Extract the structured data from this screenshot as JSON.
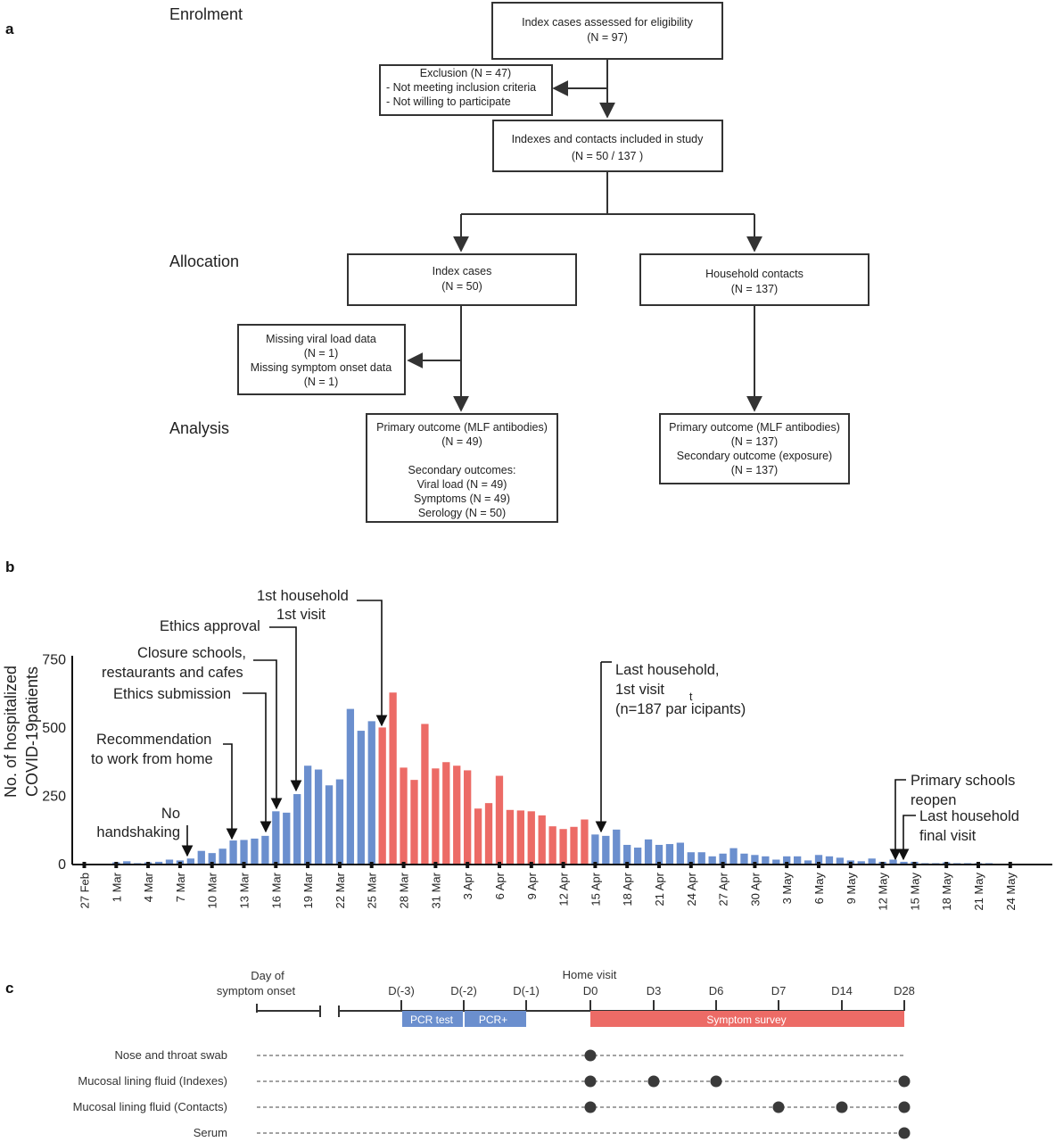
{
  "panels": {
    "a": "a",
    "b": "b",
    "c": "c"
  },
  "flow": {
    "stages": {
      "enrolment": "Enrolment",
      "allocation": "Allocation",
      "analysis": "Analysis"
    },
    "assessed": {
      "line1": "Index cases assessed for eligibility",
      "line2": "(N = 97)"
    },
    "exclusion": {
      "line1": "Exclusion (N = 47)",
      "line2": "- Not meeting inclusion criteria",
      "line3": "- Not willing to participate"
    },
    "included": {
      "line1": "Indexes and contacts included in study",
      "line2": "(N = 50 / 137 )"
    },
    "index_cases": {
      "line1": "Index cases",
      "line2": "(N = 50)"
    },
    "household": {
      "line1": "Household contacts",
      "line2": "(N = 137)"
    },
    "missing": {
      "line1": "Missing viral load data",
      "line2": "(N = 1)",
      "line3": "Missing symptom onset data",
      "line4": "(N = 1)"
    },
    "index_outcome": {
      "line1": "Primary outcome (MLF antibodies)",
      "line2": "(N = 49)",
      "line3": "Secondary outcomes:",
      "line4": "Viral load (N = 49)",
      "line5": "Symptoms (N = 49)",
      "line6": "Serology (N = 50)"
    },
    "household_outcome": {
      "line1": "Primary outcome (MLF antibodies)",
      "line2": "(N =  137)",
      "line3": "Secondary outcome (exposure)",
      "line4": "(N = 137)"
    }
  },
  "chart_data": {
    "type": "bar",
    "ylabel_line1": "No. of hospitalized",
    "ylabel_line2": "COVID-19patients",
    "ylim": [
      0,
      780
    ],
    "yticks": [
      0,
      250,
      500,
      750
    ],
    "xtick_labels": [
      "27 Feb",
      "1 Mar",
      "4 Mar",
      "7 Mar",
      "10 Mar",
      "13 Mar",
      "16 Mar",
      "19 Mar",
      "22 Mar",
      "25 Mar",
      "28 Mar",
      "31 Mar",
      "3 Apr",
      "6 Apr",
      "9 Apr",
      "12 Apr",
      "15 Apr",
      "18 Apr",
      "21 Apr",
      "24 Apr",
      "27 Apr",
      "30 Apr",
      "3 May",
      "6 May",
      "9 May",
      "12 May",
      "15 May",
      "18 May",
      "21 May",
      "24 May"
    ],
    "first_date": "27 Feb",
    "colors": {
      "before": "#6b8fce",
      "study": "#ec6b66"
    },
    "series": [
      {
        "values": [
          3,
          3,
          0,
          8,
          12,
          5,
          8,
          10,
          18,
          15,
          22,
          50,
          42,
          58,
          88,
          90,
          95,
          105,
          195,
          190,
          258,
          362,
          348,
          290,
          312,
          570,
          490,
          525
        ],
        "color": "#6b8fce"
      },
      {
        "values": [
          502,
          630,
          355,
          310,
          515,
          352,
          375,
          362,
          345,
          205,
          225,
          325,
          200,
          198,
          195,
          180,
          140,
          130,
          138,
          165
        ],
        "color": "#ec6b66"
      },
      {
        "values": [
          110,
          105,
          128,
          72,
          62,
          92,
          72,
          75,
          80,
          45,
          45,
          30,
          40,
          60,
          40,
          35,
          30,
          18,
          30,
          30,
          15,
          35,
          30,
          25,
          15,
          12,
          22,
          10,
          18,
          10,
          10,
          5,
          5,
          8,
          5,
          5,
          5,
          5,
          3,
          3,
          2,
          2
        ],
        "color": "#6b8fce"
      }
    ],
    "annotations": {
      "no_handshaking": {
        "line1": "No",
        "line2": "handshaking"
      },
      "work_from_home": {
        "line1": "Recommendation",
        "line2": "to work from home"
      },
      "ethics_submission": {
        "line1": "Ethics submission"
      },
      "closure": {
        "line1": "Closure schools,",
        "line2": "restaurants and cafes"
      },
      "ethics_approval": {
        "line1": "Ethics approval"
      },
      "first_household": {
        "line1": "1st household",
        "line2": "1st visit"
      },
      "last_household": {
        "line1": "Last household,",
        "line2": "1st visit",
        "line3": "(n=187 par icipants)",
        "stray": "t"
      },
      "schools_reopen": {
        "line1": "Primary schools",
        "line2": "reopen"
      },
      "last_final": {
        "line1": "Last household",
        "line2": "final visit"
      }
    }
  },
  "timeline": {
    "onset": {
      "line1": "Day of",
      "line2": "symptom onset"
    },
    "home_visit": "Home visit",
    "days": [
      "D(-3)",
      "D(-2)",
      "D(-1)",
      "D0",
      "D3",
      "D6",
      "D7",
      "D14",
      "D28"
    ],
    "pcr_test": "PCR test",
    "pcr_pos": "PCR+",
    "symptom_survey": "Symptom survey",
    "rows": [
      {
        "label": "Nose and throat swab",
        "dots": [
          "D0"
        ]
      },
      {
        "label": "Mucosal lining fluid (Indexes)",
        "dots": [
          "D0",
          "D3",
          "D6",
          "D28"
        ]
      },
      {
        "label": "Mucosal lining fluid (Contacts)",
        "dots": [
          "D0",
          "D7",
          "D14",
          "D28"
        ]
      },
      {
        "label": "Serum",
        "dots": [
          "D28"
        ]
      }
    ],
    "colors": {
      "bar": "#6b8fce",
      "survey": "#ec6b66",
      "dot": "#3a3a3a"
    }
  }
}
